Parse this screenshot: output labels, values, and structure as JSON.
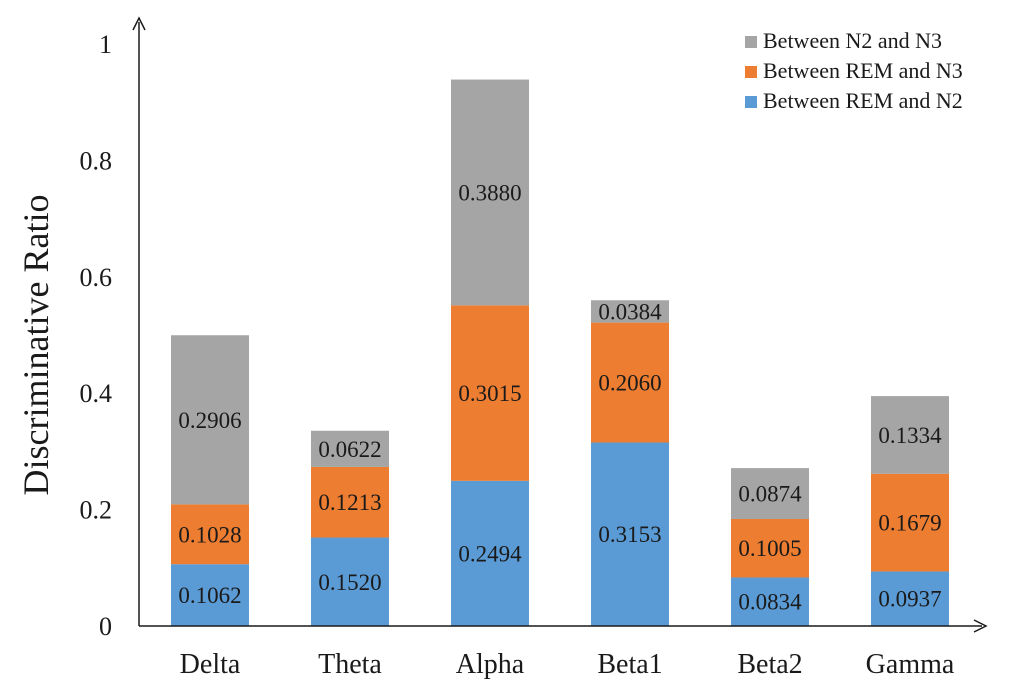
{
  "chart_data": {
    "type": "bar",
    "stacked": true,
    "title": "",
    "xlabel": "",
    "ylabel": "Discriminative  Ratio",
    "ylim": [
      0,
      1
    ],
    "yticks": [
      {
        "value": 0,
        "label": "0"
      },
      {
        "value": 0.2,
        "label": "0.2"
      },
      {
        "value": 0.4,
        "label": "0.4"
      },
      {
        "value": 0.6,
        "label": "0.6"
      },
      {
        "value": 0.8,
        "label": "0.8"
      },
      {
        "value": 1,
        "label": "1"
      }
    ],
    "grid": false,
    "legend_position": "top-right",
    "categories": [
      "Delta",
      "Theta",
      "Alpha",
      "Beta1",
      "Beta2",
      "Gamma"
    ],
    "series": [
      {
        "name": "Between REM and N2",
        "color": "#5b9bd5",
        "values": [
          0.1062,
          0.152,
          0.2494,
          0.3153,
          0.0834,
          0.0937
        ],
        "labels": [
          "0.1062",
          "0.1520",
          "0.2494",
          "0.3153",
          "0.0834",
          "0.0937"
        ]
      },
      {
        "name": "Between REM and N3",
        "color": "#ed7d31",
        "values": [
          0.1028,
          0.1213,
          0.3015,
          0.206,
          0.1005,
          0.1679
        ],
        "labels": [
          "0.1028",
          "0.1213",
          "0.3015",
          "0.2060",
          "0.1005",
          "0.1679"
        ]
      },
      {
        "name": "Between N2 and N3",
        "color": "#a5a5a5",
        "values": [
          0.2906,
          0.0622,
          0.388,
          0.0384,
          0.0874,
          0.1334
        ],
        "labels": [
          "0.2906",
          "0.0622",
          "0.3880",
          "0.0384",
          "0.0874",
          "0.1334"
        ]
      }
    ],
    "legend_order": [
      "Between N2 and N3",
      "Between REM and N3",
      "Between REM and N2"
    ]
  }
}
